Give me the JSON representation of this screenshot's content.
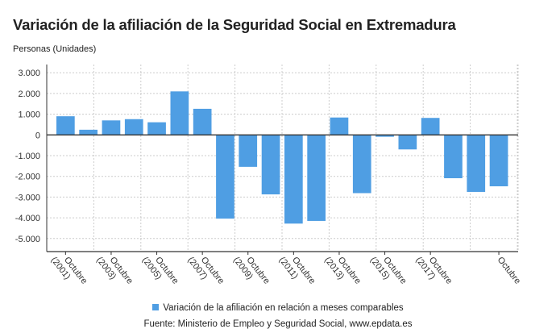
{
  "title": "Variación de la afiliación de la Seguridad Social en Extremadura",
  "source": "Fuente: Ministerio de Empleo y Seguridad Social, www.epdata.es",
  "chart_data": {
    "type": "bar",
    "ylabel": "Personas (Unidades)",
    "ylim": [
      -5600,
      3500
    ],
    "yticks": [
      3000,
      2000,
      1000,
      0,
      -1000,
      -2000,
      -3000,
      -4000,
      -5000
    ],
    "ytick_labels": [
      "3.000",
      "2.000",
      "1.000",
      "0",
      "-1.000",
      "-2.000",
      "-3.000",
      "-4.000",
      "-5.000"
    ],
    "grid": true,
    "legend_position": "bottom",
    "color": "#4f9ee3",
    "categories": [
      "Octubre (2001)",
      "",
      "Octubre (2003)",
      "",
      "Octubre (2005)",
      "",
      "Octubre (2007)",
      "",
      "Octubre (2009)",
      "",
      "Octubre (2011)",
      "",
      "Octubre (2013)",
      "",
      "Octubre (2015)",
      "",
      "Octubre (2017)",
      "",
      "",
      "Octubre"
    ],
    "series": [
      {
        "name": "Variación de la afiliación en relación a meses comparables",
        "values": [
          900,
          250,
          700,
          760,
          610,
          2100,
          1260,
          -4040,
          -1540,
          -2870,
          -4280,
          -4150,
          840,
          -2810,
          -90,
          -700,
          820,
          -2090,
          -2750,
          -2480
        ]
      }
    ]
  }
}
